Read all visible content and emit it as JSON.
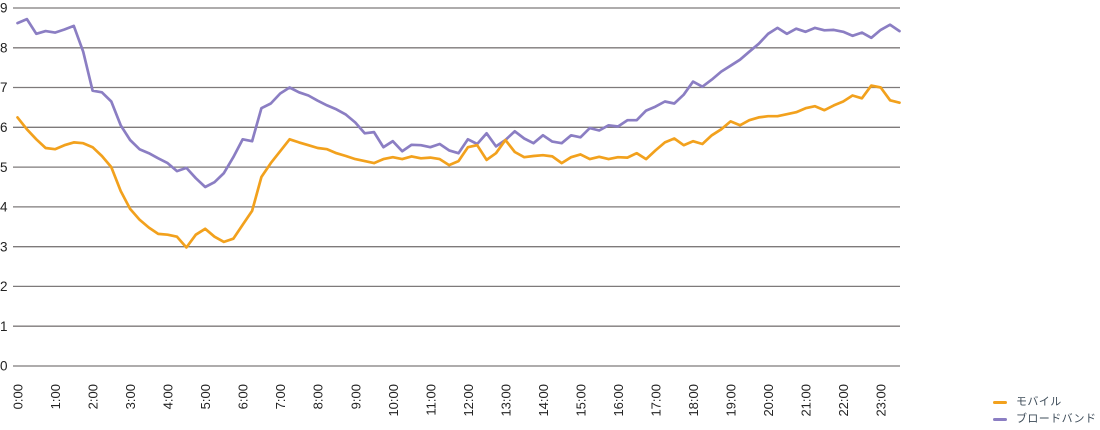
{
  "colors": {
    "mobile": "#F2A11D",
    "broadband": "#8B7EC3",
    "grid": "#7E7A7A",
    "axis_text": "#222222",
    "legend_text": "#3E4C59",
    "background": "#FFFFFF"
  },
  "legend": {
    "items": [
      {
        "label": "モバイル",
        "color_key": "mobile"
      },
      {
        "label": "ブロードバンド",
        "color_key": "broadband"
      }
    ]
  },
  "chart_data": {
    "type": "line",
    "title": "",
    "xlabel": "",
    "ylabel": "",
    "grid": "horizontal",
    "legend_position": "bottom-right",
    "x_axis": {
      "tick_labels": [
        "0:00",
        "1:00",
        "2:00",
        "3:00",
        "4:00",
        "5:00",
        "6:00",
        "7:00",
        "8:00",
        "9:00",
        "10:00",
        "11:00",
        "12:00",
        "13:00",
        "14:00",
        "15:00",
        "16:00",
        "17:00",
        "18:00",
        "19:00",
        "20:00",
        "21:00",
        "22:00",
        "23:00"
      ],
      "label_rotation_deg": -90,
      "sample_interval_minutes": 15,
      "start_time": "0:00",
      "end_time": "23:30"
    },
    "y_axis": {
      "ticks": [
        9,
        8,
        7,
        6,
        5,
        4,
        3,
        2,
        1,
        0
      ],
      "range": [
        0,
        9
      ]
    },
    "series": [
      {
        "name": "モバイル",
        "color_key": "mobile",
        "values": [
          6.25,
          5.95,
          5.7,
          5.48,
          5.45,
          5.55,
          5.62,
          5.6,
          5.5,
          5.28,
          5.0,
          4.4,
          3.95,
          3.68,
          3.48,
          3.32,
          3.3,
          3.25,
          2.98,
          3.3,
          3.45,
          3.25,
          3.12,
          3.2,
          3.55,
          3.9,
          4.75,
          5.1,
          5.4,
          5.7,
          5.62,
          5.55,
          5.48,
          5.45,
          5.35,
          5.28,
          5.2,
          5.15,
          5.1,
          5.2,
          5.25,
          5.2,
          5.27,
          5.22,
          5.24,
          5.2,
          5.05,
          5.15,
          5.5,
          5.55,
          5.18,
          5.35,
          5.68,
          5.38,
          5.25,
          5.28,
          5.3,
          5.27,
          5.1,
          5.25,
          5.32,
          5.2,
          5.26,
          5.2,
          5.25,
          5.24,
          5.35,
          5.2,
          5.42,
          5.62,
          5.72,
          5.55,
          5.65,
          5.58,
          5.8,
          5.95,
          6.15,
          6.05,
          6.18,
          6.25,
          6.28,
          6.28,
          6.33,
          6.38,
          6.48,
          6.53,
          6.43,
          6.55,
          6.65,
          6.8,
          6.73,
          7.05,
          7.0,
          6.68,
          6.62
        ]
      },
      {
        "name": "ブロードバンド",
        "color_key": "broadband",
        "values": [
          8.62,
          8.72,
          8.35,
          8.42,
          8.38,
          8.46,
          8.55,
          7.9,
          6.92,
          6.88,
          6.65,
          6.05,
          5.68,
          5.45,
          5.35,
          5.22,
          5.1,
          4.9,
          4.98,
          4.72,
          4.5,
          4.62,
          4.85,
          5.25,
          5.7,
          5.65,
          6.48,
          6.6,
          6.85,
          7.0,
          6.88,
          6.8,
          6.67,
          6.55,
          6.45,
          6.32,
          6.12,
          5.85,
          5.88,
          5.5,
          5.65,
          5.4,
          5.56,
          5.55,
          5.5,
          5.58,
          5.42,
          5.35,
          5.7,
          5.58,
          5.85,
          5.52,
          5.68,
          5.9,
          5.72,
          5.6,
          5.8,
          5.64,
          5.6,
          5.8,
          5.75,
          5.98,
          5.92,
          6.05,
          6.02,
          6.18,
          6.18,
          6.42,
          6.52,
          6.65,
          6.6,
          6.82,
          7.15,
          7.02,
          7.2,
          7.4,
          7.55,
          7.7,
          7.9,
          8.1,
          8.35,
          8.5,
          8.35,
          8.48,
          8.4,
          8.5,
          8.44,
          8.45,
          8.4,
          8.3,
          8.38,
          8.25,
          8.45,
          8.58,
          8.42
        ]
      }
    ]
  }
}
